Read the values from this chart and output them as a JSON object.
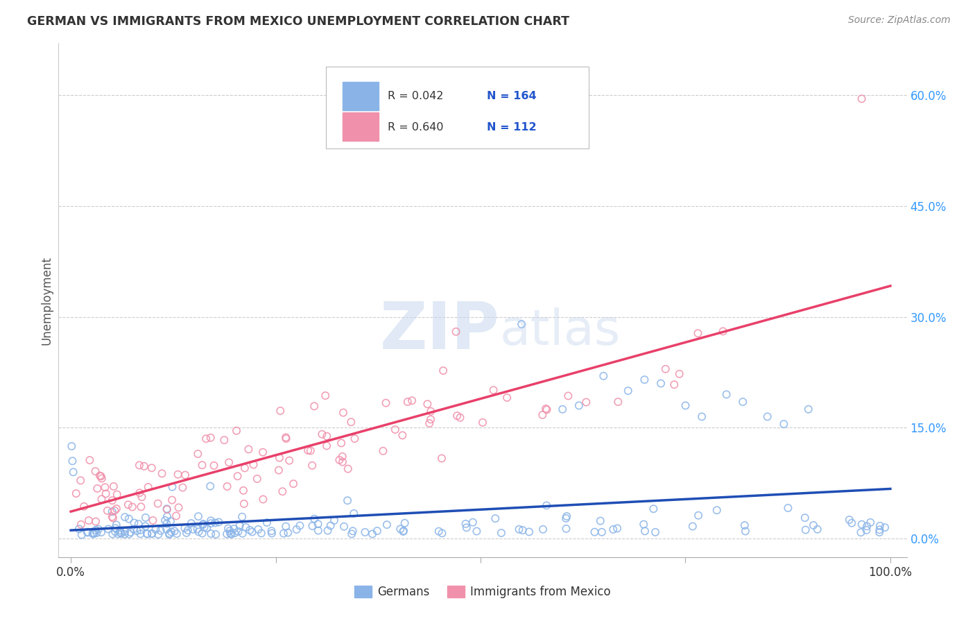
{
  "title": "GERMAN VS IMMIGRANTS FROM MEXICO UNEMPLOYMENT CORRELATION CHART",
  "source": "Source: ZipAtlas.com",
  "ylabel": "Unemployment",
  "watermark_zip": "ZIP",
  "watermark_atlas": "atlas",
  "legend_german_R": "0.042",
  "legend_german_N": "164",
  "legend_mexico_R": "0.640",
  "legend_mexico_N": "112",
  "german_color": "#8ab4e8",
  "mexico_color": "#f090aa",
  "german_line_color": "#1f4eb5",
  "mexico_line_color": "#e8406a",
  "legend_text_color": "#2255cc",
  "background_color": "#ffffff",
  "grid_color": "#cccccc",
  "ytick_color": "#3399ff",
  "xtick_bottom_color": "#3399ff",
  "seed": 42
}
